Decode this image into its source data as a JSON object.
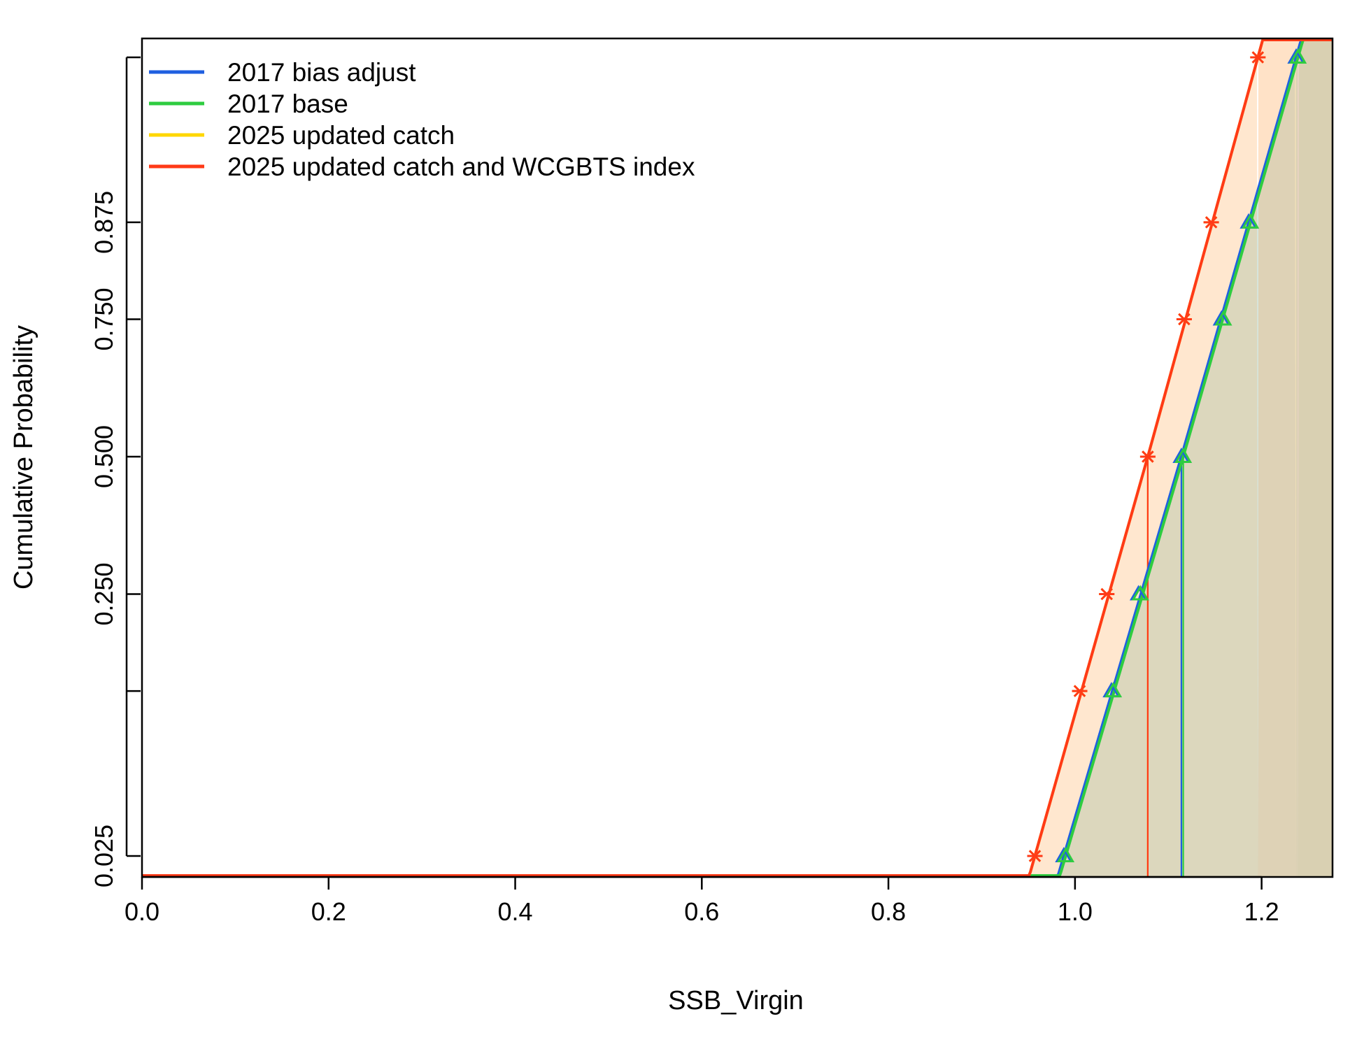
{
  "chart_data": {
    "type": "line",
    "title": "",
    "xlabel": "SSB_Virgin",
    "ylabel": "Cumulative Probability",
    "xlim": [
      0.0,
      1.276
    ],
    "ylim": [
      0.0,
      1.0
    ],
    "xticks": [
      0.0,
      0.2,
      0.4,
      0.6,
      0.8,
      1.0,
      1.2
    ],
    "xtick_labels": [
      "0.0",
      "0.2",
      "0.4",
      "0.6",
      "0.8",
      "1.0",
      "1.2"
    ],
    "yticks": [
      0.025,
      0.125,
      0.25,
      0.5,
      0.75,
      0.875,
      0.975
    ],
    "ytick_labels": [
      "0.025",
      "",
      "0.250",
      "0.500",
      "0.750",
      "0.875",
      ""
    ],
    "grid": false,
    "legend_position": "top-left",
    "quantile_probs": [
      0.025,
      0.125,
      0.25,
      0.5,
      0.75,
      0.875,
      0.975
    ],
    "series": [
      {
        "name": "2017 bias adjust",
        "color": "#1f5fe0",
        "marker": "triangle",
        "median": 1.114,
        "quantiles": [
          0.988,
          1.039,
          1.068,
          1.114,
          1.157,
          1.186,
          1.237
        ],
        "shade_upper": 1.237
      },
      {
        "name": "2017 base",
        "color": "#2ecc40",
        "marker": "triangle",
        "median": 1.116,
        "quantiles": [
          0.99,
          1.041,
          1.07,
          1.116,
          1.159,
          1.188,
          1.239
        ],
        "shade_upper": 1.239
      },
      {
        "name": "2025 updated catch",
        "color": "#ffd700",
        "marker": "asterisk",
        "median": 1.078,
        "quantiles": [
          0.957,
          1.005,
          1.034,
          1.078,
          1.117,
          1.146,
          1.196
        ],
        "shade_upper": 1.196
      },
      {
        "name": "2025 updated catch and WCGBTS index",
        "color": "#ff3a17",
        "marker": "asterisk",
        "median": 1.078,
        "quantiles": [
          0.957,
          1.005,
          1.034,
          1.078,
          1.117,
          1.146,
          1.196
        ],
        "shade_upper": 1.196
      }
    ]
  }
}
